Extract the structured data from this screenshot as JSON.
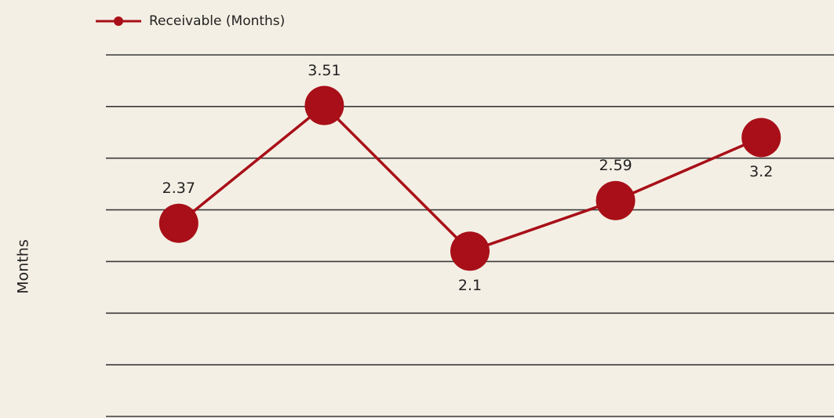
{
  "chart_data": {
    "type": "line",
    "y_label": "Months",
    "categories": [
      null,
      null,
      null,
      null,
      null
    ],
    "series": [
      {
        "name": "Receivable (Months)",
        "color": "#a80f18",
        "values": [
          2.37,
          3.51,
          2.1,
          2.59,
          3.2
        ]
      }
    ],
    "ylim": [
      0.5,
      4.0
    ],
    "yticks": [
      0.5,
      1.0,
      1.5,
      2.0,
      2.5,
      3.0,
      3.5,
      4.0
    ],
    "grid": true,
    "legend": "top-left"
  }
}
